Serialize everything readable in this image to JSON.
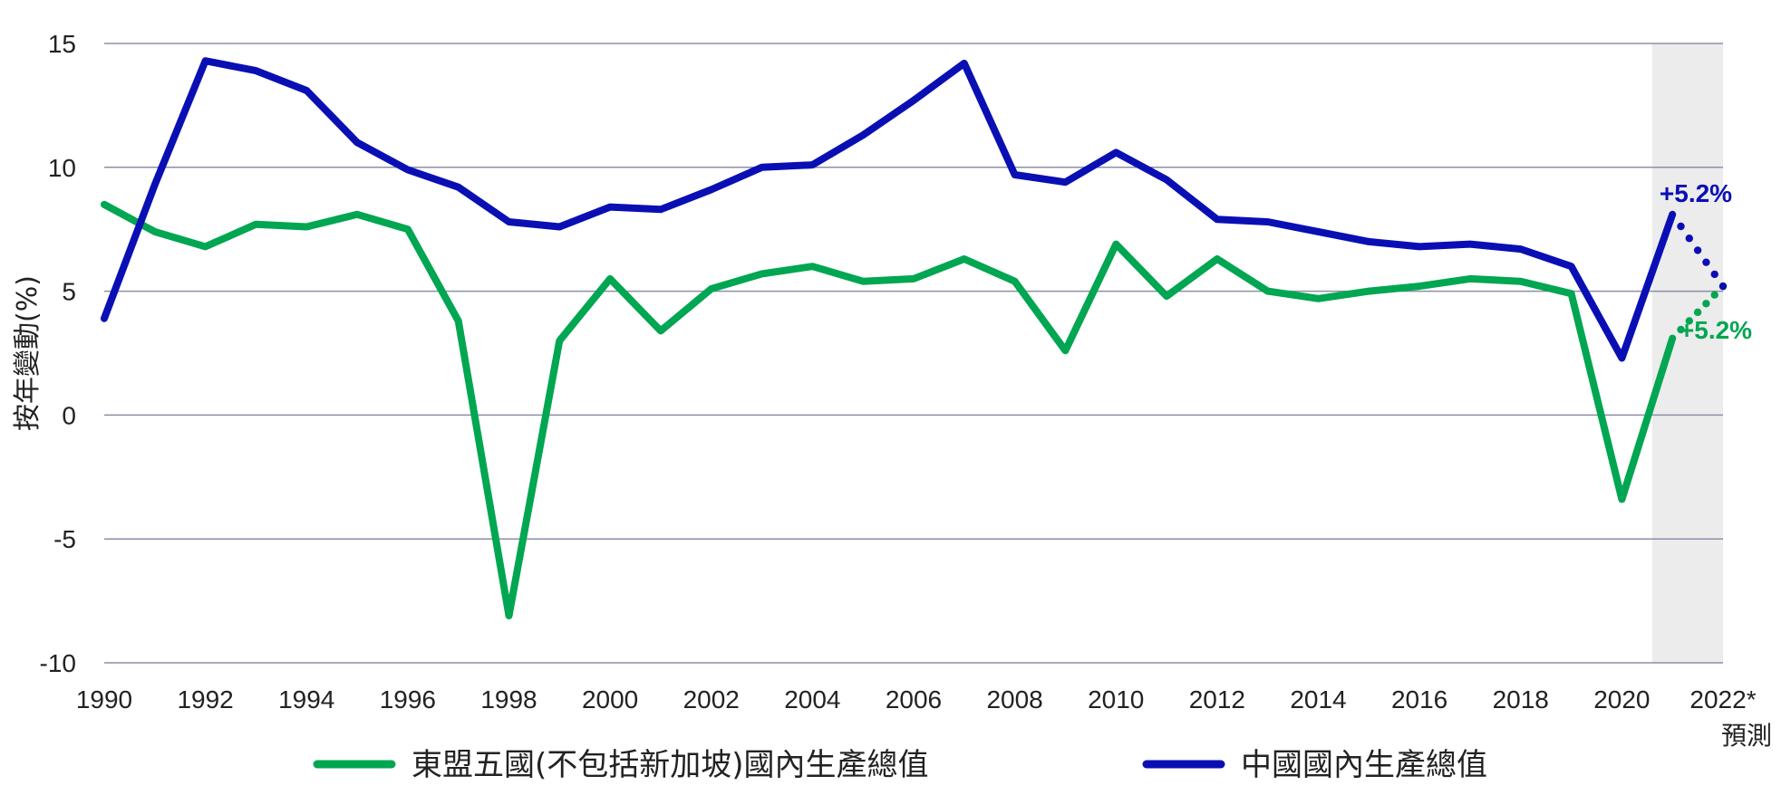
{
  "chart_data": {
    "type": "line",
    "title": "",
    "ylabel": "按年變動(%)",
    "xlabel": "",
    "ylim": [
      -10,
      15
    ],
    "yticks": [
      15,
      10,
      5,
      0,
      -5,
      -10
    ],
    "ytick_labels": [
      "15",
      "10",
      "5",
      "0",
      "-5",
      "-10"
    ],
    "xlim": [
      1990,
      2022
    ],
    "xticks": [
      1990,
      1992,
      1994,
      1996,
      1998,
      2000,
      2002,
      2004,
      2006,
      2008,
      2010,
      2012,
      2014,
      2016,
      2018,
      2020,
      2022
    ],
    "xtick_labels": [
      "1990",
      "1992",
      "1994",
      "1996",
      "1998",
      "2000",
      "2002",
      "2004",
      "2006",
      "2008",
      "2010",
      "2012",
      "2014",
      "2016",
      "2018",
      "2020",
      "2022*"
    ],
    "forecast_label": "預測",
    "forecast_region": [
      2020.6,
      2022
    ],
    "grid": true,
    "legend_position": "bottom",
    "series": [
      {
        "name": "東盟五國(不包括新加坡)國內生產總值",
        "color": "#00A651",
        "x": [
          1990,
          1991,
          1992,
          1993,
          1994,
          1995,
          1996,
          1997,
          1998,
          1999,
          2000,
          2001,
          2002,
          2003,
          2004,
          2005,
          2006,
          2007,
          2008,
          2009,
          2010,
          2011,
          2012,
          2013,
          2014,
          2015,
          2016,
          2017,
          2018,
          2019,
          2020,
          2021
        ],
        "values": [
          8.5,
          7.4,
          6.8,
          7.7,
          7.6,
          8.1,
          7.5,
          3.8,
          -8.1,
          3.0,
          5.5,
          3.4,
          5.1,
          5.7,
          6.0,
          5.4,
          5.5,
          6.3,
          5.4,
          2.6,
          6.9,
          4.8,
          6.3,
          5.0,
          4.7,
          5.0,
          5.2,
          5.5,
          5.4,
          4.9,
          -3.4,
          3.1
        ],
        "forecast_x": [
          2021,
          2022
        ],
        "forecast_values": [
          3.1,
          5.2
        ],
        "annotation": "+5.2%"
      },
      {
        "name": "中國國內生產總值",
        "color": "#0A0FB4",
        "x": [
          1990,
          1991,
          1992,
          1993,
          1994,
          1995,
          1996,
          1997,
          1998,
          1999,
          2000,
          2001,
          2002,
          2003,
          2004,
          2005,
          2006,
          2007,
          2008,
          2009,
          2010,
          2011,
          2012,
          2013,
          2014,
          2015,
          2016,
          2017,
          2018,
          2019,
          2020,
          2021
        ],
        "values": [
          3.9,
          9.3,
          14.3,
          13.9,
          13.1,
          11.0,
          9.9,
          9.2,
          7.8,
          7.6,
          8.4,
          8.3,
          9.1,
          10.0,
          10.1,
          11.3,
          12.7,
          14.2,
          9.7,
          9.4,
          10.6,
          9.5,
          7.9,
          7.8,
          7.4,
          7.0,
          6.8,
          6.9,
          6.7,
          6.0,
          2.3,
          8.1
        ],
        "forecast_x": [
          2021,
          2022
        ],
        "forecast_values": [
          8.1,
          5.2
        ],
        "annotation": "+5.2%"
      }
    ]
  }
}
